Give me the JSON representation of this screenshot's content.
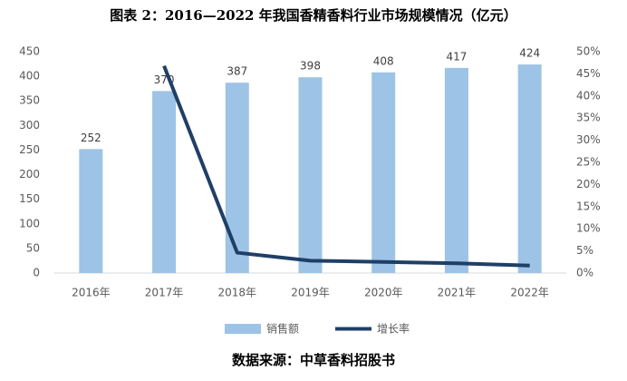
{
  "chart_data": {
    "type": "bar",
    "title": "图表 2：2016—2022 年我国香精香料行业市场规模情况（亿元）",
    "source": "数据来源：中草香料招股书",
    "categories": [
      "2016年",
      "2017年",
      "2018年",
      "2019年",
      "2020年",
      "2021年",
      "2022年"
    ],
    "series": [
      {
        "name": "销售额",
        "type": "bar",
        "color": "#9dc3e6",
        "values": [
          252,
          370,
          387,
          398,
          408,
          417,
          424
        ]
      },
      {
        "name": "增长率",
        "type": "line",
        "axis": "y2",
        "color": "#1f3f66",
        "values": [
          null,
          46.8,
          4.6,
          2.8,
          2.5,
          2.2,
          1.7
        ]
      }
    ],
    "ylim": [
      0,
      450
    ],
    "yticks": [
      0,
      50,
      100,
      150,
      200,
      250,
      300,
      350,
      400,
      450
    ],
    "y2lim": [
      0,
      50
    ],
    "y2ticks": [
      {
        "value": 0,
        "label": "0%"
      },
      {
        "value": 5,
        "label": "5%"
      },
      {
        "value": 10,
        "label": "10%"
      },
      {
        "value": 15,
        "label": "15%"
      },
      {
        "value": 20,
        "label": "20%"
      },
      {
        "value": 25,
        "label": "25%"
      },
      {
        "value": 30,
        "label": "30%"
      },
      {
        "value": 35,
        "label": "35%"
      },
      {
        "value": 40,
        "label": "40%"
      },
      {
        "value": 45,
        "label": "45%"
      },
      {
        "value": 50,
        "label": "50%"
      }
    ],
    "grid": false,
    "legend": "bottom"
  }
}
